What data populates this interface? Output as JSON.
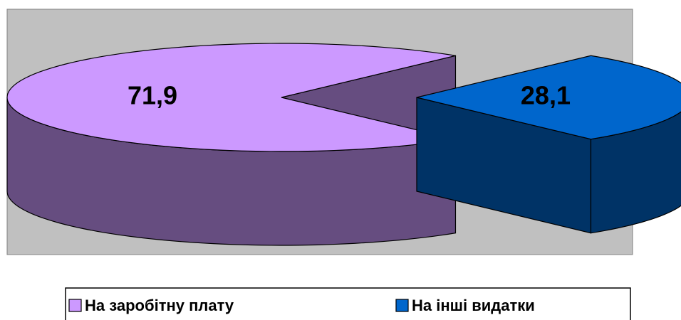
{
  "chart_data": {
    "type": "pie",
    "categories": [
      "На заробітну плату",
      "На інші видатки"
    ],
    "values": [
      71.9,
      28.1
    ],
    "value_labels": [
      "71,9",
      "28,1"
    ],
    "colors": [
      "#cc99ff",
      "#0066cc"
    ],
    "legend": "bottom"
  }
}
